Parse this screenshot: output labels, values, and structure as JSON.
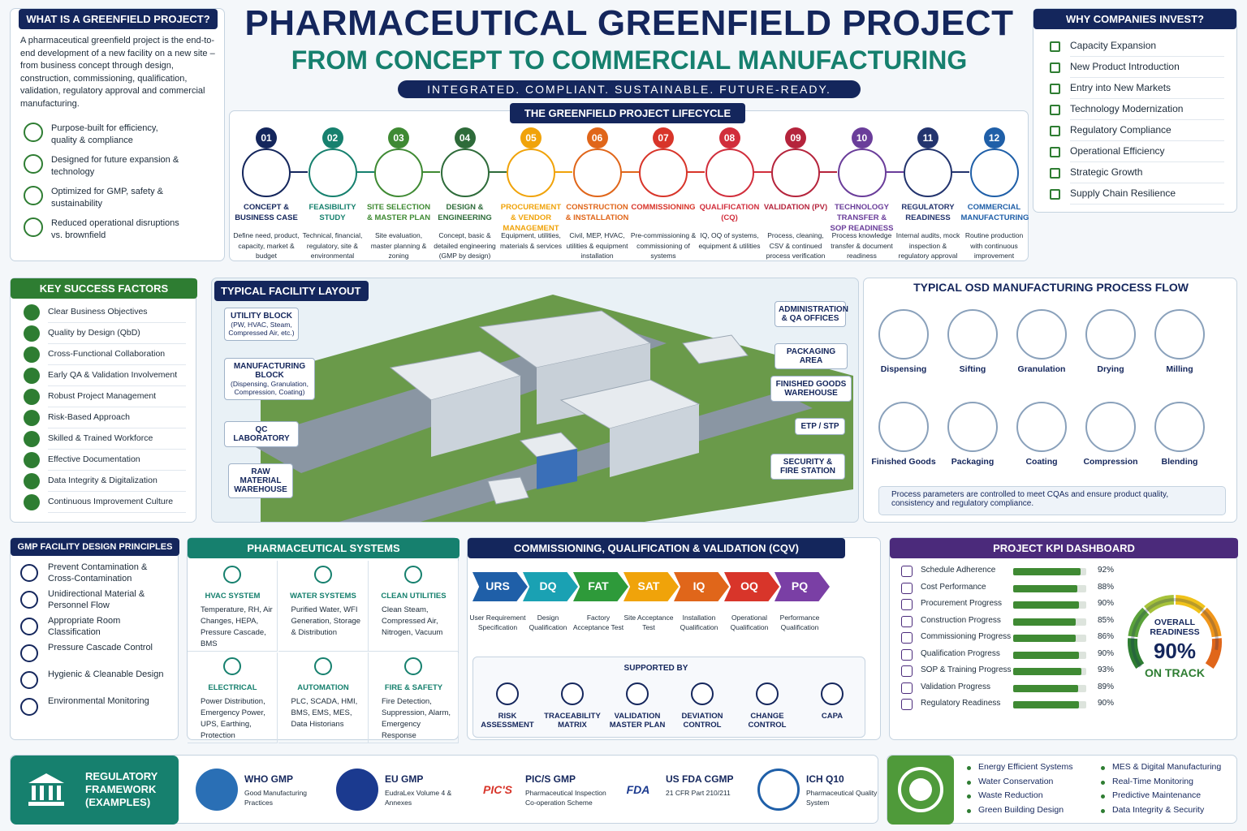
{
  "header": {
    "title": "PHARMACEUTICAL GREENFIELD PROJECT",
    "subtitle": "FROM CONCEPT TO COMMERCIAL MANUFACTURING",
    "tagline": "INTEGRATED. COMPLIANT. SUSTAINABLE. FUTURE-READY."
  },
  "what_is": {
    "title": "WHAT IS A GREENFIELD PROJECT?",
    "text": "A pharmaceutical greenfield project is the end-to-end development of a new facility on a new site – from business concept through design, construction, commissioning, qualification, validation, regulatory approval and commercial manufacturing.",
    "benefits": [
      "Purpose-built for efficiency, quality & compliance",
      "Designed for future expansion & technology",
      "Optimized for GMP, safety & sustainability",
      "Reduced operational disruptions vs. brownfield"
    ]
  },
  "why_invest": {
    "title": "WHY COMPANIES INVEST?",
    "items": [
      "Capacity Expansion",
      "New Product Introduction",
      "Entry into New Markets",
      "Technology Modernization",
      "Regulatory Compliance",
      "Operational Efficiency",
      "Strategic Growth",
      "Supply Chain Resilience"
    ]
  },
  "lifecycle": {
    "title": "THE GREENFIELD PROJECT LIFECYCLE",
    "steps": [
      {
        "num": "01",
        "title": "CONCEPT & BUSINESS CASE",
        "desc": "Define need, product, capacity, market & budget"
      },
      {
        "num": "02",
        "title": "FEASIBILITY STUDY",
        "desc": "Technical, financial, regulatory, site & environmental"
      },
      {
        "num": "03",
        "title": "SITE SELECTION & MASTER PLAN",
        "desc": "Site evaluation, master planning & zoning"
      },
      {
        "num": "04",
        "title": "DESIGN & ENGINEERING",
        "desc": "Concept, basic & detailed engineering (GMP by design)"
      },
      {
        "num": "05",
        "title": "PROCUREMENT & VENDOR MANAGEMENT",
        "desc": "Equipment, utilities, materials & services"
      },
      {
        "num": "06",
        "title": "CONSTRUCTION & INSTALLATION",
        "desc": "Civil, MEP, HVAC, utilities & equipment installation"
      },
      {
        "num": "07",
        "title": "COMMISSIONING",
        "desc": "Pre-commissioning & commissioning of systems"
      },
      {
        "num": "08",
        "title": "QUALIFICATION (CQ)",
        "desc": "IQ, OQ of systems, equipment & utilities"
      },
      {
        "num": "09",
        "title": "VALIDATION (PV)",
        "desc": "Process, cleaning, CSV & continued process verification"
      },
      {
        "num": "10",
        "title": "TECHNOLOGY TRANSFER & SOP READINESS",
        "desc": "Process knowledge transfer & document readiness"
      },
      {
        "num": "11",
        "title": "REGULATORY READINESS",
        "desc": "Internal audits, mock inspection & regulatory approval"
      },
      {
        "num": "12",
        "title": "COMMERCIAL MANUFACTURING",
        "desc": "Routine production with continuous improvement"
      }
    ]
  },
  "key_success": {
    "title": "KEY SUCCESS FACTORS",
    "items": [
      "Clear Business Objectives",
      "Quality by Design (QbD)",
      "Cross-Functional Collaboration",
      "Early QA & Validation Involvement",
      "Robust Project Management",
      "Risk-Based Approach",
      "Skilled & Trained Workforce",
      "Effective Documentation",
      "Data Integrity & Digitalization",
      "Continuous Improvement Culture"
    ]
  },
  "layout": {
    "title": "TYPICAL FACILITY LAYOUT",
    "labels": [
      {
        "name": "UTILITY BLOCK",
        "detail": "(PW, HVAC, Steam, Compressed Air, etc.)"
      },
      {
        "name": "MANUFACTURING BLOCK",
        "detail": "(Dispensing, Granulation, Compression, Coating)"
      },
      {
        "name": "QC LABORATORY"
      },
      {
        "name": "RAW MATERIAL WAREHOUSE"
      },
      {
        "name": "ADMINISTRATION & QA OFFICES"
      },
      {
        "name": "PACKAGING AREA"
      },
      {
        "name": "FINISHED GOODS WAREHOUSE"
      },
      {
        "name": "ETP / STP"
      },
      {
        "name": "SECURITY & FIRE STATION"
      }
    ]
  },
  "process_flow": {
    "title": "TYPICAL OSD MANUFACTURING PROCESS FLOW",
    "steps": [
      "Dispensing",
      "Sifting",
      "Granulation",
      "Drying",
      "Milling",
      "Blending",
      "Compression",
      "Coating",
      "Packaging",
      "Finished Goods"
    ],
    "note": "Process parameters are controlled to meet CQAs and ensure product quality, consistency and regulatory compliance."
  },
  "gmp": {
    "title": "GMP FACILITY DESIGN PRINCIPLES",
    "items": [
      "Prevent Contamination & Cross-Contamination",
      "Unidirectional Material & Personnel Flow",
      "Appropriate Room Classification",
      "Pressure Cascade Control",
      "Hygienic & Cleanable Design",
      "Environmental Monitoring"
    ]
  },
  "systems": {
    "title": "PHARMACEUTICAL SYSTEMS",
    "items": [
      {
        "title": "HVAC SYSTEM",
        "desc": "Temperature, RH, Air Changes, HEPA, Pressure Cascade, BMS"
      },
      {
        "title": "WATER SYSTEMS",
        "desc": "Purified Water, WFI Generation, Storage & Distribution"
      },
      {
        "title": "CLEAN UTILITIES",
        "desc": "Clean Steam, Compressed Air, Nitrogen, Vacuum"
      },
      {
        "title": "ELECTRICAL",
        "desc": "Power Distribution, Emergency Power, UPS, Earthing, Protection"
      },
      {
        "title": "AUTOMATION",
        "desc": "PLC, SCADA, HMI, BMS, EMS, MES, Data Historians"
      },
      {
        "title": "FIRE & SAFETY",
        "desc": "Fire Detection, Suppression, Alarm, Emergency Response"
      }
    ]
  },
  "cqv": {
    "title": "COMMISSIONING, QUALIFICATION & VALIDATION (CQV)",
    "stages": [
      {
        "code": "URS",
        "desc": "User Requirement Specification"
      },
      {
        "code": "DQ",
        "desc": "Design Qualification"
      },
      {
        "code": "FAT",
        "desc": "Factory Acceptance Test"
      },
      {
        "code": "SAT",
        "desc": "Site Acceptance Test"
      },
      {
        "code": "IQ",
        "desc": "Installation Qualification"
      },
      {
        "code": "OQ",
        "desc": "Operational Qualification"
      },
      {
        "code": "PQ",
        "desc": "Performance Qualification"
      }
    ],
    "supported_by": "SUPPORTED BY",
    "supports": [
      "RISK ASSESSMENT",
      "TRACEABILITY MATRIX",
      "VALIDATION MASTER PLAN",
      "DEVIATION CONTROL",
      "CHANGE CONTROL",
      "CAPA"
    ]
  },
  "kpi": {
    "title": "PROJECT KPI DASHBOARD",
    "items": [
      {
        "name": "Schedule Adherence",
        "value": 92,
        "value_label": "92%"
      },
      {
        "name": "Cost Performance",
        "value": 88,
        "value_label": "88%"
      },
      {
        "name": "Procurement Progress",
        "value": 90,
        "value_label": "90%"
      },
      {
        "name": "Construction Progress",
        "value": 85,
        "value_label": "85%"
      },
      {
        "name": "Commissioning Progress",
        "value": 86,
        "value_label": "86%"
      },
      {
        "name": "Qualification Progress",
        "value": 90,
        "value_label": "90%"
      },
      {
        "name": "SOP & Training Progress",
        "value": 93,
        "value_label": "93%"
      },
      {
        "name": "Validation Progress",
        "value": 89,
        "value_label": "89%"
      },
      {
        "name": "Regulatory Readiness",
        "value": 90,
        "value_label": "90%"
      }
    ],
    "overall_label": "OVERALL READINESS",
    "overall_value": 90,
    "overall_value_label": "90%",
    "status": "ON TRACK"
  },
  "regulatory": {
    "title": "REGULATORY FRAMEWORK (EXAMPLES)",
    "items": [
      {
        "logo": "",
        "name": "WHO GMP",
        "desc": "Good Manufacturing Practices"
      },
      {
        "logo": "",
        "name": "EU GMP",
        "desc": "EudraLex Volume 4 & Annexes"
      },
      {
        "logo": "PIC'S",
        "name": "PIC/S GMP",
        "desc": "Pharmaceutical Inspection Co-operation Scheme"
      },
      {
        "logo": "FDA",
        "name": "US FDA CGMP",
        "desc": "21 CFR Part 210/211"
      },
      {
        "logo": "",
        "name": "ICH Q10",
        "desc": "Pharmaceutical Quality System"
      }
    ]
  },
  "sustainability": {
    "items": [
      "Energy Efficient Systems",
      "Water Conservation",
      "Waste Reduction",
      "Green Building Design",
      "MES & Digital Manufacturing",
      "Real-Time Monitoring",
      "Predictive Maintenance",
      "Data Integrity & Security"
    ]
  }
}
